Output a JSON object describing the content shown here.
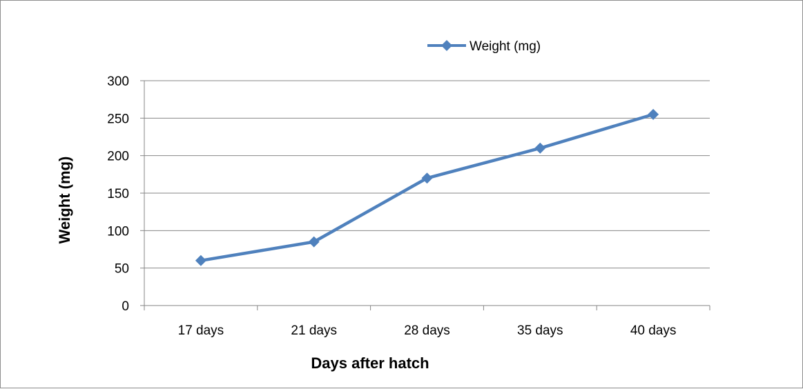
{
  "chart_data": {
    "type": "line",
    "categories": [
      "17 days",
      "21 days",
      "28 days",
      "35 days",
      "40 days"
    ],
    "series": [
      {
        "name": "Weight (mg)",
        "values": [
          60,
          85,
          170,
          210,
          255
        ],
        "color": "#4f81bd",
        "marker": "diamond"
      }
    ],
    "xlabel": "Days after hatch",
    "ylabel": "Weight (mg)",
    "ylim": [
      0,
      300
    ],
    "yticks": [
      0,
      50,
      100,
      150,
      200,
      250,
      300
    ],
    "grid": {
      "horizontal": true,
      "vertical": false,
      "color": "#868686"
    },
    "legend": {
      "placement": "top-right"
    }
  }
}
